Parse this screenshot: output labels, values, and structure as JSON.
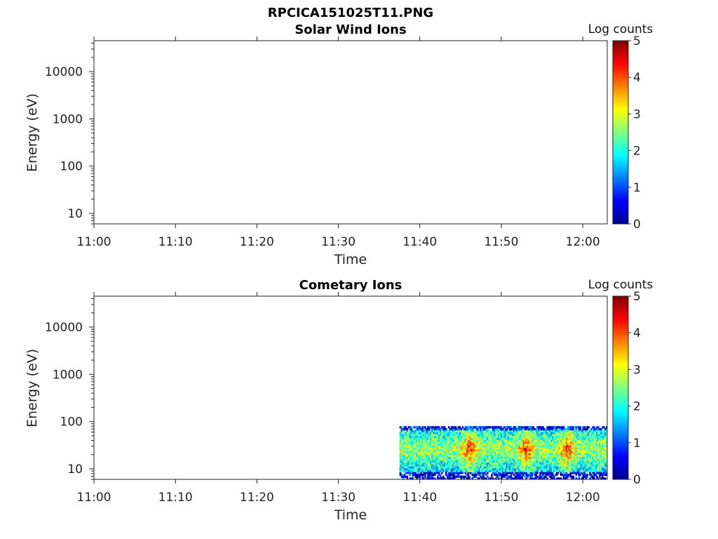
{
  "figure_title": "RPCICA151025T11.PNG",
  "chart_data": [
    {
      "type": "heatmap",
      "title": "Solar Wind Ions",
      "xlabel": "Time",
      "ylabel": "Energy (eV)",
      "x_ticks": [
        "11:00",
        "11:10",
        "11:20",
        "11:30",
        "11:40",
        "11:50",
        "12:00"
      ],
      "x_range": [
        "11:00",
        "12:03"
      ],
      "y_scale": "log",
      "y_range": [
        6,
        45000
      ],
      "y_ticks": [
        10,
        100,
        1000,
        10000
      ],
      "y_tick_labels": [
        "10",
        "100",
        "1000",
        "10000"
      ],
      "colorbar": {
        "label": "Log counts",
        "min": 0,
        "max": 5,
        "ticks": [
          "0",
          "1",
          "2",
          "3",
          "4",
          "5"
        ],
        "colormap": "jet"
      },
      "data": []
    },
    {
      "type": "heatmap",
      "title": "Cometary Ions",
      "xlabel": "Time",
      "ylabel": "Energy (eV)",
      "x_ticks": [
        "11:00",
        "11:10",
        "11:20",
        "11:30",
        "11:40",
        "11:50",
        "12:00"
      ],
      "x_range": [
        "11:00",
        "12:03"
      ],
      "y_scale": "log",
      "y_range": [
        6,
        45000
      ],
      "y_ticks": [
        10,
        100,
        1000,
        10000
      ],
      "y_tick_labels": [
        "10",
        "100",
        "1000",
        "10000"
      ],
      "colorbar": {
        "label": "Log counts",
        "min": 0,
        "max": 5,
        "ticks": [
          "0",
          "1",
          "2",
          "3",
          "4",
          "5"
        ],
        "colormap": "jet"
      },
      "data": [
        {
          "time_start": "11:37:30",
          "time_end": "12:03:00",
          "energy_min": 6,
          "energy_max": 80,
          "log_counts_range": [
            0,
            4
          ],
          "peak_times": [
            "11:46",
            "11:53",
            "11:58"
          ],
          "peak_log_counts": 3.8
        }
      ]
    }
  ]
}
